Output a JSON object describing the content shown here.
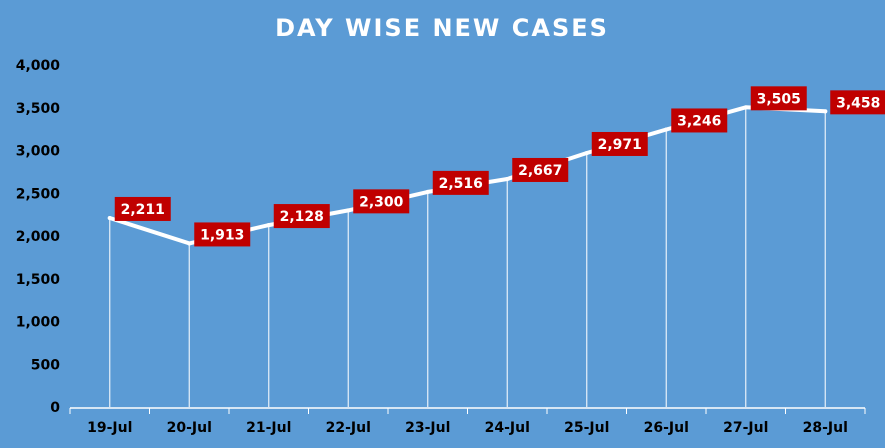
{
  "chart_data": {
    "type": "line",
    "title": "DAY WISE NEW CASES",
    "xlabel": "",
    "ylabel": "",
    "categories": [
      "19-Jul",
      "20-Jul",
      "21-Jul",
      "22-Jul",
      "23-Jul",
      "24-Jul",
      "25-Jul",
      "26-Jul",
      "27-Jul",
      "28-Jul"
    ],
    "series": [
      {
        "values": [
          2211,
          1913,
          2128,
          2300,
          2516,
          2667,
          2971,
          3246,
          3505,
          3458
        ]
      }
    ],
    "data_labels": [
      "2,211",
      "1,913",
      "2,128",
      "2,300",
      "2,516",
      "2,667",
      "2,971",
      "3,246",
      "3,505",
      "3,458"
    ],
    "ylim": [
      0,
      4000
    ],
    "yticks": [
      0,
      500,
      1000,
      1500,
      2000,
      2500,
      3000,
      3500,
      4000
    ],
    "ytick_labels": [
      "0",
      "500",
      "1,000",
      "1,500",
      "2,000",
      "2,500",
      "3,000",
      "3,500",
      "4,000"
    ],
    "grid": false,
    "drop_lines": true,
    "legend": "none",
    "colors": {
      "background": "#5b9bd5",
      "line": "#ffffff",
      "label_bg": "#c00000",
      "label_text": "#ffffff",
      "tick_text": "#000000"
    }
  }
}
